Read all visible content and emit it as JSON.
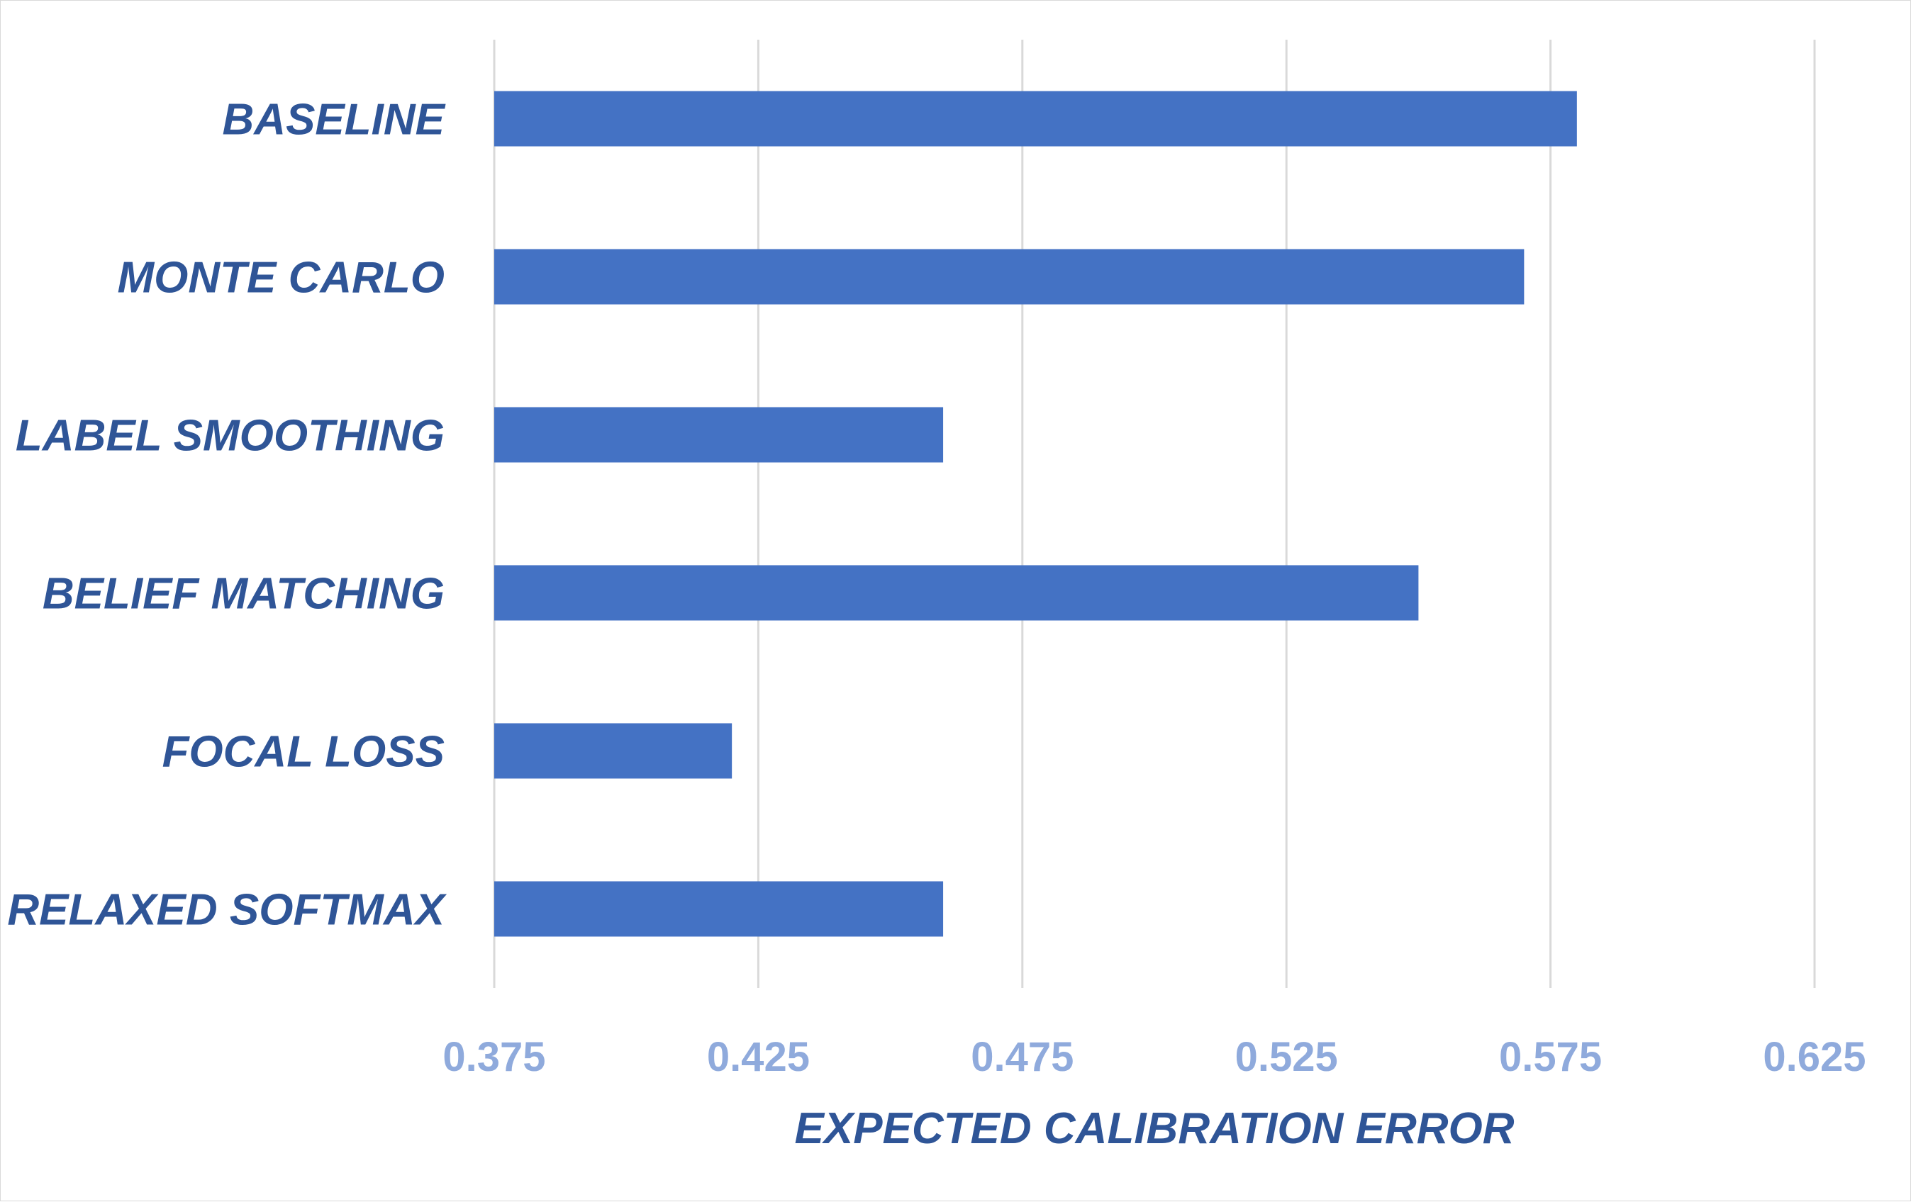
{
  "chart_data": {
    "type": "bar",
    "orientation": "horizontal",
    "categories": [
      "BASELINE",
      "MONTE CARLO",
      "LABEL SMOOTHING",
      "BELIEF MATCHING",
      "FOCAL LOSS",
      "RELAXED SOFTMAX"
    ],
    "values": [
      0.58,
      0.57,
      0.46,
      0.55,
      0.42,
      0.46
    ],
    "xlabel": "EXPECTED CALIBRATION ERROR",
    "ylabel": "",
    "title": "",
    "xlim": [
      0.375,
      0.625
    ],
    "xticks": [
      "0.375",
      "0.425",
      "0.475",
      "0.525",
      "0.575",
      "0.625"
    ],
    "grid": true,
    "legend": "none",
    "bar_color": "#4472c4",
    "category_label_color": "#2f5597",
    "tick_label_color": "#8faadc",
    "gridline_color": "#d9d9d9"
  }
}
